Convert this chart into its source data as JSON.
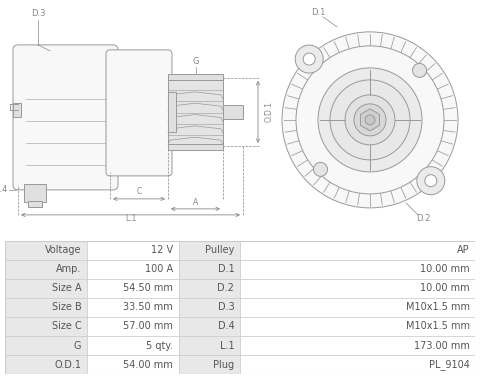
{
  "bg_color": "#ffffff",
  "table_border_color": "#cccccc",
  "table_label_bg": "#e8e8e8",
  "table_value_bg": "#ffffff",
  "table_text_color": "#555555",
  "diagram_bg": "#ffffff",
  "line_color": "#999999",
  "fill_color": "#f0f0f0",
  "fill_dark": "#e0e0e0",
  "fill_light": "#f8f8f8",
  "dim_color": "#888888",
  "rows": [
    [
      "Voltage",
      "12 V",
      "Pulley",
      "AP"
    ],
    [
      "Amp.",
      "100 A",
      "D.1",
      "10.00 mm"
    ],
    [
      "Size A",
      "54.50 mm",
      "D.2",
      "10.00 mm"
    ],
    [
      "Size B",
      "33.50 mm",
      "D.3",
      "M10x1.5 mm"
    ],
    [
      "Size C",
      "57.00 mm",
      "D.4",
      "M10x1.5 mm"
    ],
    [
      "G",
      "5 qty.",
      "L.1",
      "173.00 mm"
    ],
    [
      "O.D.1",
      "54.00 mm",
      "Plug",
      "PL_9104"
    ]
  ]
}
